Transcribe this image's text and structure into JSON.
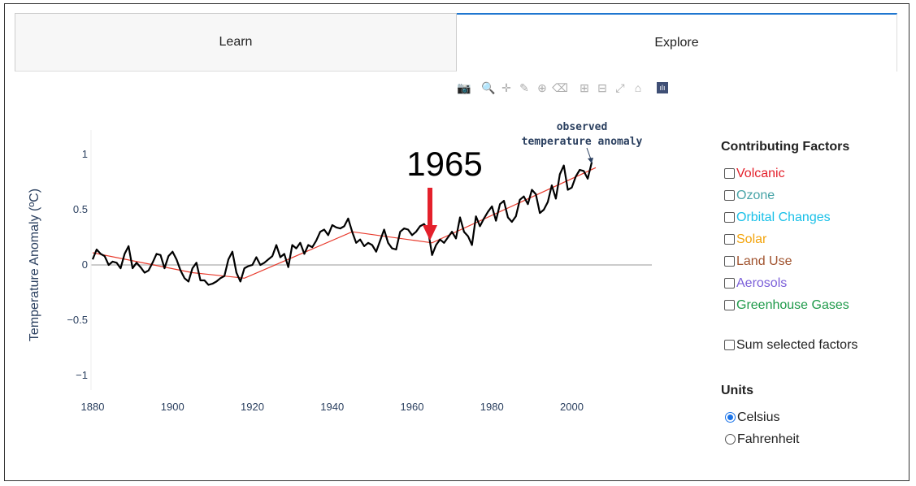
{
  "tabs": [
    {
      "label": "Learn",
      "active": false
    },
    {
      "label": "Explore",
      "active": true
    }
  ],
  "modebar": {
    "icons": [
      "camera-icon",
      "zoom-icon",
      "pan-icon",
      "lasso-icon",
      "zoom-in-icon",
      "zoom-out-icon",
      "autoscale-icon",
      "reset-axes-icon",
      "home-icon",
      "plotly-logo-icon"
    ],
    "glyphs": [
      "📷",
      "🔍",
      "✛",
      "✎",
      "⊕",
      "⌫",
      "⊞",
      "⊟",
      "⤢",
      "⌂",
      "ılı"
    ]
  },
  "annotation": {
    "year_label": "1965",
    "observed_line1": "observed",
    "observed_line2": "temperature anomaly"
  },
  "chart_data": {
    "type": "line",
    "ylabel": "Temperature Anomaly (ºC)",
    "xlabel": "",
    "xlim": [
      1880,
      2016
    ],
    "ylim": [
      -1.1,
      1.2
    ],
    "x_ticks": [
      "1880",
      "1900",
      "1920",
      "1940",
      "1960",
      "1980",
      "2000"
    ],
    "y_ticks": [
      "−1",
      "−0.5",
      "0",
      "0.5",
      "1"
    ],
    "y_tick_values": [
      -1,
      -0.5,
      0,
      0.5,
      1
    ],
    "x_tick_values": [
      1880,
      1900,
      1920,
      1940,
      1960,
      1980,
      2000
    ],
    "series": [
      {
        "color": "#000000",
        "start_year": 1880,
        "values": [
          0.05,
          0.14,
          0.1,
          0.08,
          0.0,
          0.03,
          0.02,
          -0.03,
          0.1,
          0.17,
          -0.03,
          0.02,
          -0.02,
          -0.07,
          -0.05,
          0.02,
          0.1,
          0.09,
          -0.03,
          0.08,
          0.12,
          0.05,
          -0.05,
          -0.12,
          -0.15,
          -0.03,
          0.02,
          -0.14,
          -0.14,
          -0.18,
          -0.17,
          -0.15,
          -0.12,
          -0.1,
          0.05,
          0.12,
          -0.07,
          -0.15,
          -0.03,
          -0.01,
          0.0,
          0.07,
          0.0,
          0.02,
          0.05,
          0.08,
          0.18,
          0.07,
          0.1,
          -0.02,
          0.18,
          0.15,
          0.2,
          0.1,
          0.18,
          0.16,
          0.22,
          0.3,
          0.32,
          0.27,
          0.36,
          0.34,
          0.33,
          0.35,
          0.42,
          0.3,
          0.2,
          0.23,
          0.17,
          0.2,
          0.18,
          0.12,
          0.22,
          0.32,
          0.2,
          0.15,
          0.14,
          0.3,
          0.33,
          0.32,
          0.27,
          0.3,
          0.35,
          0.37,
          0.32,
          0.09,
          0.18,
          0.23,
          0.2,
          0.25,
          0.3,
          0.24,
          0.43,
          0.3,
          0.26,
          0.18,
          0.44,
          0.35,
          0.42,
          0.48,
          0.53,
          0.4,
          0.55,
          0.58,
          0.43,
          0.39,
          0.44,
          0.59,
          0.62,
          0.55,
          0.68,
          0.64,
          0.47,
          0.5,
          0.57,
          0.72,
          0.6,
          0.82,
          0.9,
          0.68,
          0.7,
          0.8,
          0.86,
          0.85,
          0.78,
          0.93
        ]
      },
      {
        "color": "#e8392b",
        "points": [
          [
            1880,
            0.11
          ],
          [
            1905,
            -0.07
          ],
          [
            1918,
            -0.12
          ],
          [
            1945,
            0.3
          ],
          [
            1965,
            0.2
          ],
          [
            2006,
            0.88
          ]
        ]
      }
    ]
  },
  "sidebar": {
    "title": "Contributing Factors",
    "factors": [
      {
        "label": "Volcanic",
        "color": "#e4202b",
        "checked": false
      },
      {
        "label": "Ozone",
        "color": "#46a3a6",
        "checked": false
      },
      {
        "label": "Orbital Changes",
        "color": "#19c0e8",
        "checked": false
      },
      {
        "label": "Solar",
        "color": "#f3a40c",
        "checked": false
      },
      {
        "label": "Land Use",
        "color": "#a0522d",
        "checked": false
      },
      {
        "label": "Aerosols",
        "color": "#7b5fd9",
        "checked": false
      },
      {
        "label": "Greenhouse Gases",
        "color": "#1f9a4a",
        "checked": false
      }
    ],
    "sum_label": "Sum selected factors",
    "units_title": "Units",
    "units": [
      {
        "label": "Celsius",
        "selected": true
      },
      {
        "label": "Fahrenheit",
        "selected": false
      }
    ]
  }
}
